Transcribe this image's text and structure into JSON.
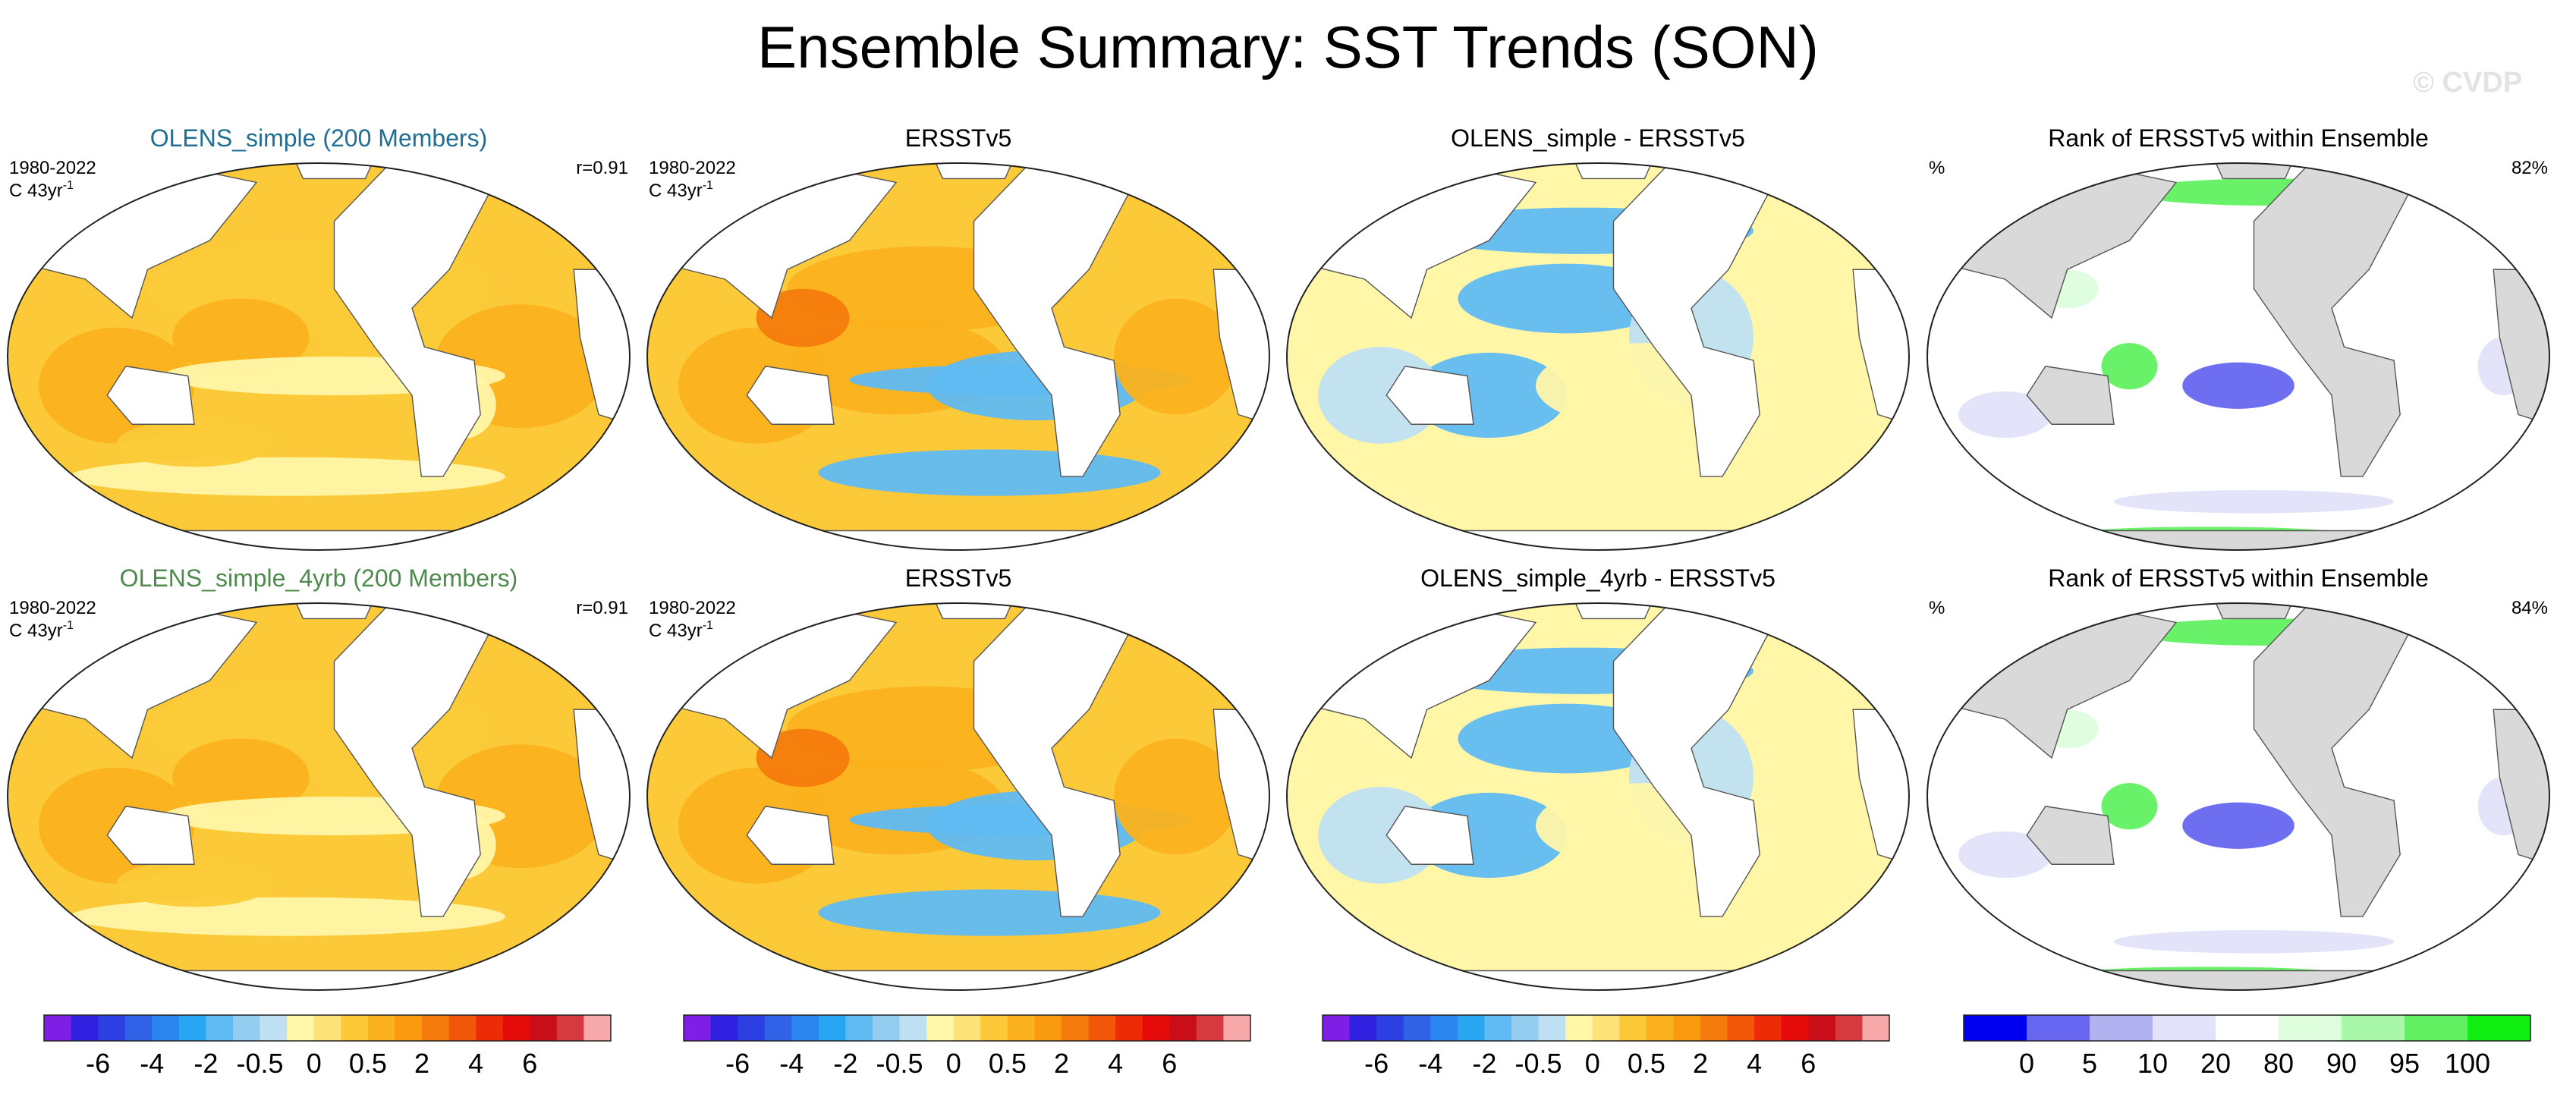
{
  "title": "Ensemble Summary: SST Trends (SON)",
  "watermark": "© CVDP",
  "chart_data": {
    "type": "heatmap",
    "title": "Ensemble Summary: SST Trends (SON)",
    "rows": [
      {
        "panels": [
          {
            "kind": "trend",
            "title": "OLENS_simple (200 Members)",
            "title_color": "#1f6e93",
            "period": "1980-2022",
            "units": "C 43yr",
            "units_sup": "-1",
            "corr": "r=0.91"
          },
          {
            "kind": "trend",
            "title": "ERSSTv5",
            "title_color": "#000000",
            "period": "1980-2022",
            "units": "C 43yr",
            "units_sup": "-1",
            "corr": ""
          },
          {
            "kind": "diff",
            "title": "OLENS_simple - ERSSTv5",
            "title_color": "#000000",
            "period": "",
            "units": "",
            "units_sup": "",
            "corr": ""
          },
          {
            "kind": "rank",
            "title": "Rank of ERSSTv5 within Ensemble",
            "title_color": "#000000",
            "period": "%",
            "units": "",
            "units_sup": "",
            "corr": "82%"
          }
        ]
      },
      {
        "panels": [
          {
            "kind": "trend",
            "title": "OLENS_simple_4yrb (200 Members)",
            "title_color": "#4e8a4e",
            "period": "1980-2022",
            "units": "C 43yr",
            "units_sup": "-1",
            "corr": "r=0.91"
          },
          {
            "kind": "trend",
            "title": "ERSSTv5",
            "title_color": "#000000",
            "period": "1980-2022",
            "units": "C 43yr",
            "units_sup": "-1",
            "corr": ""
          },
          {
            "kind": "diff",
            "title": "OLENS_simple_4yrb - ERSSTv5",
            "title_color": "#000000",
            "period": "",
            "units": "",
            "units_sup": "",
            "corr": ""
          },
          {
            "kind": "rank",
            "title": "Rank of ERSSTv5 within Ensemble",
            "title_color": "#000000",
            "period": "%",
            "units": "",
            "units_sup": "",
            "corr": "84%"
          }
        ]
      }
    ],
    "trend_colorbar": {
      "colors": [
        "#7f1fe6",
        "#3020e0",
        "#2b3fe2",
        "#2f62e6",
        "#2a86ee",
        "#28a6f2",
        "#5fbaf2",
        "#94cdf0",
        "#bfe0f3",
        "#fff6a8",
        "#fde27a",
        "#fcca38",
        "#fbb21e",
        "#f99a10",
        "#f57b0c",
        "#f15609",
        "#ee2b07",
        "#e50b0b",
        "#c90d19",
        "#d63a3f",
        "#f7a8a8"
      ],
      "labels": [
        "-6",
        "-4",
        "-2",
        "-0.5",
        "0",
        "0.5",
        "2",
        "4",
        "6"
      ],
      "label_boundaries": [
        2,
        4,
        6,
        8,
        10,
        12,
        14,
        16,
        18
      ]
    },
    "diff_colorbar": {
      "colors": [
        "#7f1fe6",
        "#3020e0",
        "#2b3fe2",
        "#2f62e6",
        "#2a86ee",
        "#28a6f2",
        "#5fbaf2",
        "#94cdf0",
        "#bfe0f3",
        "#fff6a8",
        "#fde27a",
        "#fcca38",
        "#fbb21e",
        "#f99a10",
        "#f57b0c",
        "#f15609",
        "#ee2b07",
        "#e50b0b",
        "#c90d19",
        "#d63a3f",
        "#f7a8a8"
      ],
      "labels": [
        "-6",
        "-4",
        "-2",
        "-0.5",
        "0",
        "0.5",
        "2",
        "4",
        "6"
      ],
      "label_boundaries": [
        2,
        4,
        6,
        8,
        10,
        12,
        14,
        16,
        18
      ]
    },
    "rank_colorbar": {
      "colors": [
        "#0000f0",
        "#6666f0",
        "#b2b2f0",
        "#e2e2fa",
        "#ffffff",
        "#ddfddd",
        "#a9f8a9",
        "#62f062",
        "#11ee11"
      ],
      "labels": [
        "0",
        "5",
        "10",
        "20",
        "80",
        "90",
        "95",
        "100"
      ],
      "label_boundaries": [
        1,
        2,
        3,
        4,
        5,
        6,
        7,
        8
      ]
    }
  }
}
